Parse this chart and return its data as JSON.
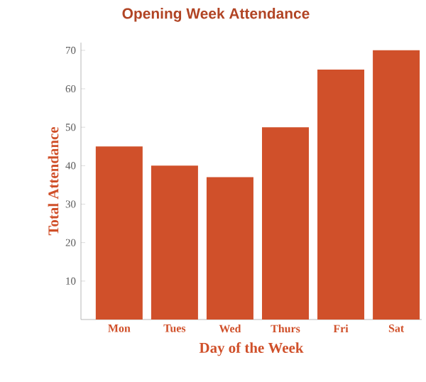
{
  "chart_data": {
    "type": "bar",
    "title": "Opening Week Attendance",
    "xlabel": "Day of the Week",
    "ylabel": "Total Attendance",
    "categories": [
      "Mon",
      "Tues",
      "Wed",
      "Thurs",
      "Fri",
      "Sat"
    ],
    "values": [
      45,
      40,
      37,
      50,
      65,
      70
    ],
    "color": "#d0502a",
    "ylim": [
      0,
      72
    ],
    "yticks": [
      10,
      20,
      30,
      40,
      50,
      60,
      70
    ],
    "grid": false
  }
}
